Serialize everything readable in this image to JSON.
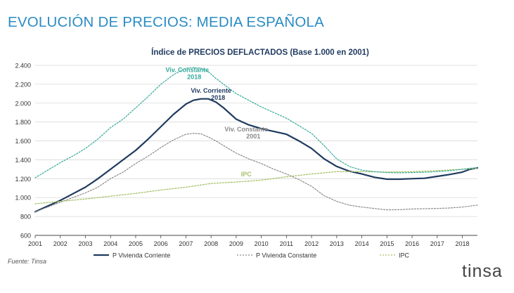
{
  "page_title": "EVOLUCIÓN DE PRECIOS: MEDIA ESPAÑOLA",
  "source": "Fuente: Tinsa",
  "logo_text": "tinsa",
  "colors": {
    "title": "#2a8cc4",
    "corriente": "#1f3a5f",
    "constante": "#8a8a8a",
    "ipc": "#a9c26a",
    "constante2018": "#35a99a"
  },
  "chart_data": {
    "type": "line",
    "title": "Índice de PRECIOS DEFLACTADOS  (Base 1.000 en 2001)",
    "xlabel": "",
    "ylabel": "",
    "x_ticks": [
      "2001",
      "2002",
      "2003",
      "2004",
      "2005",
      "2006",
      "2007",
      "2008",
      "2009",
      "2010",
      "2011",
      "2012",
      "2013",
      "2014",
      "2015",
      "2016",
      "2017",
      "2018"
    ],
    "xlim": [
      2001,
      2018.6
    ],
    "y_ticks": [
      "600",
      "800",
      "1.000",
      "1.200",
      "1.400",
      "1.600",
      "1.800",
      "2.000",
      "2.200",
      "2.400"
    ],
    "ylim": [
      600,
      2400
    ],
    "grid": "horizontal",
    "legend_position": "bottom",
    "series": [
      {
        "name": "P Vivienda Corriente",
        "style": "solid",
        "x": [
          2001,
          2001.5,
          2002,
          2002.5,
          2003,
          2003.5,
          2004,
          2004.5,
          2005,
          2005.5,
          2006,
          2006.5,
          2007,
          2007.3,
          2007.6,
          2007.9,
          2008.2,
          2008.5,
          2009,
          2009.5,
          2010,
          2010.5,
          2011,
          2011.5,
          2012,
          2012.5,
          2013,
          2013.5,
          2014,
          2014.5,
          2015,
          2015.5,
          2016,
          2016.5,
          2017,
          2017.5,
          2018,
          2018.3,
          2018.6
        ],
        "values": [
          850,
          910,
          970,
          1040,
          1110,
          1200,
          1300,
          1400,
          1500,
          1620,
          1750,
          1880,
          1990,
          2030,
          2045,
          2045,
          2010,
          1950,
          1830,
          1770,
          1730,
          1700,
          1670,
          1600,
          1520,
          1410,
          1330,
          1280,
          1250,
          1215,
          1195,
          1195,
          1200,
          1205,
          1225,
          1245,
          1270,
          1300,
          1315
        ]
      },
      {
        "name": "P Vivienda Constante",
        "style": "dotted",
        "x": [
          2001,
          2001.5,
          2002,
          2002.5,
          2003,
          2003.5,
          2004,
          2004.5,
          2005,
          2005.5,
          2006,
          2006.5,
          2007,
          2007.3,
          2007.6,
          2007.9,
          2008.2,
          2008.5,
          2009,
          2009.5,
          2010,
          2010.5,
          2011,
          2011.5,
          2012,
          2012.5,
          2013,
          2013.5,
          2014,
          2014.5,
          2015,
          2015.5,
          2016,
          2016.5,
          2017,
          2017.5,
          2018,
          2018.3,
          2018.6
        ],
        "values": [
          850,
          900,
          950,
          1000,
          1050,
          1110,
          1200,
          1270,
          1360,
          1440,
          1530,
          1610,
          1670,
          1680,
          1675,
          1640,
          1600,
          1550,
          1470,
          1410,
          1360,
          1300,
          1250,
          1190,
          1120,
          1020,
          960,
          920,
          900,
          885,
          870,
          872,
          880,
          883,
          885,
          890,
          900,
          910,
          920
        ]
      },
      {
        "name": "IPC",
        "style": "dotted",
        "x": [
          2001,
          2002,
          2003,
          2004,
          2005,
          2006,
          2007,
          2008,
          2009,
          2010,
          2011,
          2012,
          2013,
          2014,
          2015,
          2016,
          2017,
          2018,
          2018.6
        ],
        "values": [
          935,
          960,
          985,
          1015,
          1045,
          1080,
          1110,
          1150,
          1165,
          1185,
          1220,
          1250,
          1275,
          1275,
          1270,
          1275,
          1285,
          1300,
          1310
        ]
      },
      {
        "name": "Viv. Constante 2018",
        "style": "dotted",
        "x": [
          2001,
          2001.5,
          2002,
          2002.5,
          2003,
          2003.5,
          2004,
          2004.5,
          2005,
          2005.5,
          2006,
          2006.5,
          2007,
          2007.3,
          2007.6,
          2007.9,
          2008.2,
          2008.5,
          2009,
          2009.5,
          2010,
          2010.5,
          2011,
          2011.5,
          2012,
          2012.5,
          2013,
          2013.5,
          2014,
          2014.5,
          2015,
          2015.5,
          2016,
          2016.5,
          2017,
          2017.5,
          2018,
          2018.3,
          2018.6
        ],
        "values": [
          1210,
          1290,
          1370,
          1440,
          1520,
          1620,
          1740,
          1830,
          1950,
          2070,
          2200,
          2300,
          2370,
          2375,
          2370,
          2330,
          2260,
          2200,
          2100,
          2030,
          1960,
          1900,
          1840,
          1760,
          1680,
          1550,
          1410,
          1330,
          1290,
          1275,
          1265,
          1262,
          1265,
          1268,
          1275,
          1285,
          1300,
          1310,
          1315
        ]
      }
    ],
    "annotations": [
      {
        "id": "constante2018",
        "lines": [
          "Viv. Constante",
          "2018"
        ],
        "x": 2007.05,
        "y": 2330,
        "color_key": "constante2018"
      },
      {
        "id": "corriente",
        "lines": [
          "Viv. Corriente",
          "2018"
        ],
        "x": 2008.0,
        "y": 2110,
        "color_key": "corriente"
      },
      {
        "id": "constante",
        "lines": [
          "Viv. Constante",
          "2001"
        ],
        "x": 2009.4,
        "y": 1700,
        "color_key": "constante"
      },
      {
        "id": "ipc",
        "lines": [
          "IPC"
        ],
        "x": 2009.4,
        "y": 1225,
        "color_key": "ipc"
      }
    ],
    "legend": [
      {
        "label": "P Vivienda Corriente",
        "color_key": "corriente",
        "style": "solid"
      },
      {
        "label": "P Vivienda Constante",
        "color_key": "constante",
        "style": "dotted"
      },
      {
        "label": "IPC",
        "color_key": "ipc",
        "style": "dotted"
      }
    ]
  }
}
